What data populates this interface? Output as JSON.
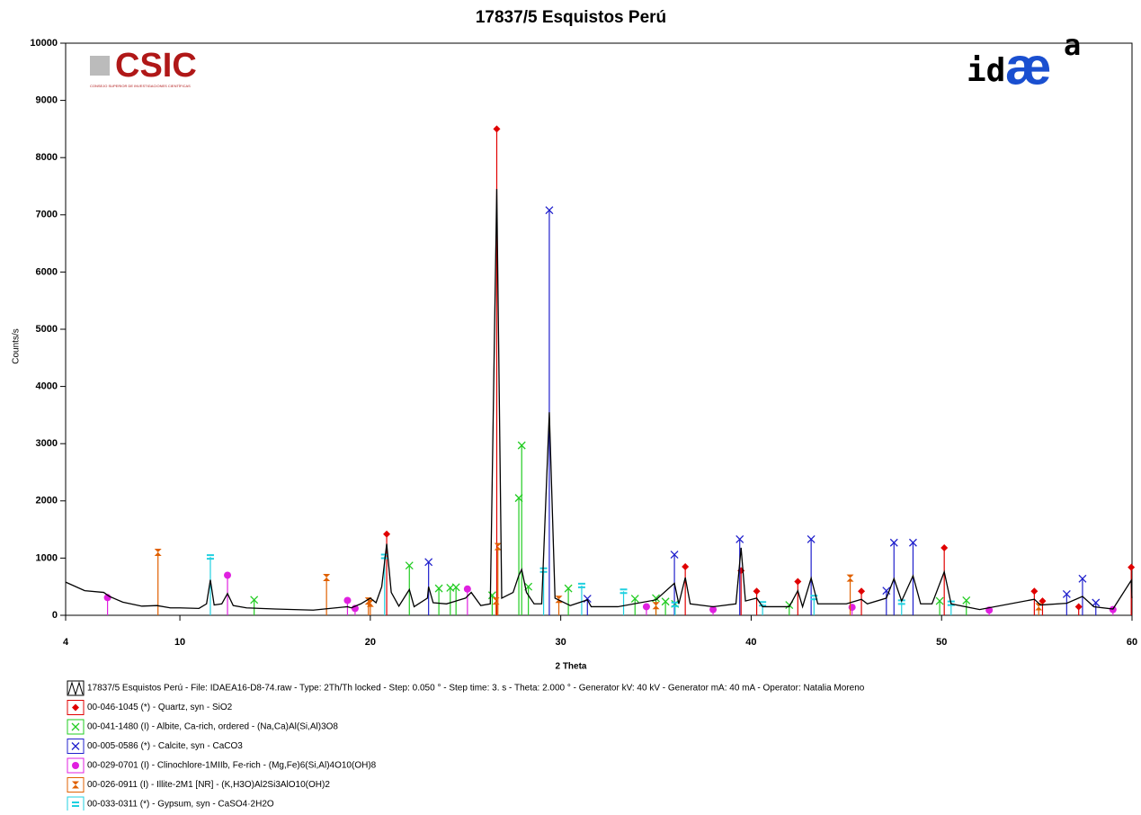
{
  "logos": {
    "csic": "CSIC",
    "csic_sub": "CONSEJO SUPERIOR DE INVESTIGACIONES CIENTÍFICAS",
    "idaea": [
      "id",
      "æ",
      "a"
    ]
  },
  "chart_data": {
    "type": "line",
    "title": "17837/5 Esquistos Perú",
    "xlabel": "2 Theta",
    "ylabel": "Counts/s",
    "xlim": [
      4,
      60
    ],
    "ylim": [
      0,
      10000
    ],
    "xticks": [
      4,
      10,
      20,
      30,
      40,
      50,
      60
    ],
    "yticks": [
      0,
      1000,
      2000,
      3000,
      4000,
      5000,
      6000,
      7000,
      8000,
      9000,
      10000
    ],
    "series": [
      {
        "name": "17837/5 Esquistos Perú - File: IDAEA16-D8-74.raw - Type: 2Th/Th locked - Step: 0.050 ° - Step time: 3. s - Theta: 2.000 ° - Generator kV: 40 kV - Generator mA: 40 mA - Operator: Natalia Moreno",
        "color": "#000000",
        "style": "line",
        "x": [
          4,
          5,
          6,
          6.3,
          7,
          8,
          8.8,
          9.5,
          10,
          11,
          11.4,
          11.6,
          11.8,
          12.2,
          12.5,
          12.8,
          13.5,
          15,
          17,
          18.8,
          19,
          19.5,
          20,
          20.3,
          20.6,
          20.86,
          21.1,
          21.5,
          22.05,
          22.3,
          23,
          23.06,
          23.3,
          24,
          24.5,
          25,
          25.3,
          25.8,
          26.3,
          26.64,
          26.9,
          27.5,
          27.8,
          27.95,
          28.2,
          28.6,
          29,
          29.4,
          29.7,
          30.5,
          31.4,
          31.6,
          33,
          35,
          35.97,
          36.2,
          36.54,
          36.8,
          38,
          39.2,
          39.47,
          39.7,
          40.29,
          40.6,
          42,
          42.45,
          42.7,
          43.15,
          43.5,
          45,
          45.79,
          46.1,
          47.1,
          47.5,
          47.9,
          48.5,
          48.9,
          49.5,
          50.14,
          50.5,
          52,
          54.87,
          55.2,
          56.57,
          57.4,
          58,
          59,
          59.96,
          60
        ],
        "values": [
          580,
          430,
          400,
          330,
          230,
          160,
          170,
          130,
          130,
          120,
          200,
          620,
          180,
          200,
          380,
          170,
          130,
          110,
          90,
          150,
          130,
          200,
          300,
          220,
          500,
          1250,
          400,
          160,
          450,
          150,
          300,
          500,
          220,
          200,
          250,
          300,
          400,
          170,
          200,
          7450,
          300,
          400,
          700,
          800,
          400,
          200,
          200,
          3550,
          300,
          170,
          270,
          150,
          150,
          270,
          560,
          200,
          660,
          200,
          150,
          200,
          1180,
          250,
          300,
          150,
          150,
          430,
          150,
          650,
          200,
          200,
          280,
          200,
          300,
          640,
          250,
          690,
          200,
          200,
          760,
          200,
          100,
          280,
          180,
          210,
          330,
          150,
          110,
          610,
          300
        ]
      },
      {
        "name": "00-046-1045 (*) - Quartz, syn - SiO2",
        "color": "#e00000",
        "style": "stick",
        "marker": "diamond",
        "x": [
          20.86,
          26.64,
          36.54,
          39.47,
          40.29,
          42.45,
          45.79,
          50.14,
          54.87,
          55.3,
          57.2,
          59.96
        ],
        "values": [
          1420,
          8500,
          850,
          780,
          420,
          590,
          420,
          1180,
          420,
          250,
          150,
          840
        ]
      },
      {
        "name": "00-041-1480 (I) - Albite, Ca-rich, ordered - (Na,Ca)Al(Si,Al)3O8",
        "color": "#22cc22",
        "style": "stick",
        "marker": "x",
        "x": [
          13.9,
          22.05,
          23.6,
          24.2,
          24.5,
          26.4,
          27.8,
          27.95,
          28.3,
          30.4,
          33.9,
          35,
          35.5,
          36,
          42,
          49.9,
          51.3
        ],
        "values": [
          270,
          870,
          470,
          480,
          490,
          350,
          2050,
          2970,
          500,
          470,
          290,
          300,
          240,
          200,
          180,
          250,
          260
        ]
      },
      {
        "name": "00-005-0586 (*) - Calcite, syn - CaCO3",
        "color": "#2020cc",
        "style": "stick",
        "marker": "x",
        "x": [
          23.06,
          29.4,
          31.4,
          35.97,
          39.4,
          43.15,
          47.1,
          47.5,
          48.5,
          56.57,
          57.4,
          58.1
        ],
        "values": [
          930,
          7080,
          290,
          1060,
          1330,
          1330,
          430,
          1270,
          1270,
          370,
          640,
          220
        ]
      },
      {
        "name": "00-029-0701 (I) - Clinochlore-1MIIb, Fe-rich - (Mg,Fe)6(Si,Al)4O10(OH)8",
        "color": "#e020e0",
        "style": "stick",
        "marker": "circle",
        "x": [
          6.2,
          12.5,
          18.8,
          19.2,
          25.1,
          34.5,
          38,
          45.3,
          52.5,
          59
        ],
        "values": [
          310,
          700,
          260,
          120,
          460,
          150,
          100,
          140,
          90,
          100
        ]
      },
      {
        "name": "00-026-0911 (I) - Illite-2M1 [NR] - (K,H3O)Al2Si3AlO10(OH)2",
        "color": "#e06000",
        "style": "stick",
        "marker": "hourglass",
        "x": [
          8.85,
          17.7,
          19.9,
          20,
          26.6,
          26.7,
          29.9,
          35,
          45.2,
          55.1
        ],
        "values": [
          1100,
          660,
          250,
          210,
          250,
          1200,
          280,
          170,
          650,
          150
        ]
      },
      {
        "name": "00-033-0311 (*) - Gypsum, syn - CaSO4·2H2O",
        "color": "#20d0e0",
        "style": "stick",
        "marker": "equals",
        "x": [
          11.6,
          20.75,
          29.1,
          31.1,
          33.3,
          36,
          40.6,
          43.3,
          47.9,
          50.5
        ],
        "values": [
          1020,
          1030,
          790,
          520,
          420,
          190,
          200,
          310,
          230,
          210
        ]
      }
    ]
  }
}
